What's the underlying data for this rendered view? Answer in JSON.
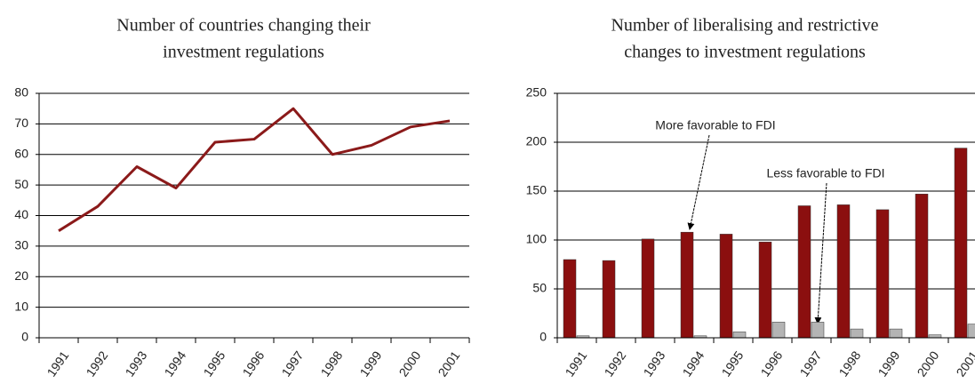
{
  "chart_data": [
    {
      "type": "line",
      "title": [
        "Number of countries changing their",
        "investment regulations"
      ],
      "categories": [
        "1991",
        "1992",
        "1993",
        "1994",
        "1995",
        "1996",
        "1997",
        "1998",
        "1999",
        "2000",
        "2001"
      ],
      "series": [
        {
          "color": "#8b1a1a",
          "values": [
            35,
            43,
            56,
            49,
            64,
            65,
            75,
            60,
            63,
            69,
            71
          ]
        }
      ],
      "ylim": [
        0,
        80
      ],
      "yticks": [
        0,
        10,
        20,
        30,
        40,
        50,
        60,
        70,
        80
      ],
      "grid": true
    },
    {
      "type": "bar",
      "title": [
        "Number of liberalising and restrictive",
        "changes to investment regulations"
      ],
      "categories": [
        "1991",
        "1992",
        "1993",
        "1994",
        "1995",
        "1996",
        "1997",
        "1998",
        "1999",
        "2000",
        "2001"
      ],
      "series": [
        {
          "name": "More favorable to FDI",
          "color": "#8b0f0f",
          "values": [
            80,
            79,
            101,
            108,
            106,
            98,
            135,
            136,
            131,
            147,
            194
          ]
        },
        {
          "name": "Less favorable to FDI",
          "color": "#b4b4b4",
          "values": [
            2,
            0,
            0,
            2,
            6,
            16,
            16,
            9,
            9,
            3,
            14
          ]
        }
      ],
      "ylim": [
        0,
        250
      ],
      "yticks": [
        0,
        50,
        100,
        150,
        200,
        250
      ],
      "grid": true
    }
  ]
}
